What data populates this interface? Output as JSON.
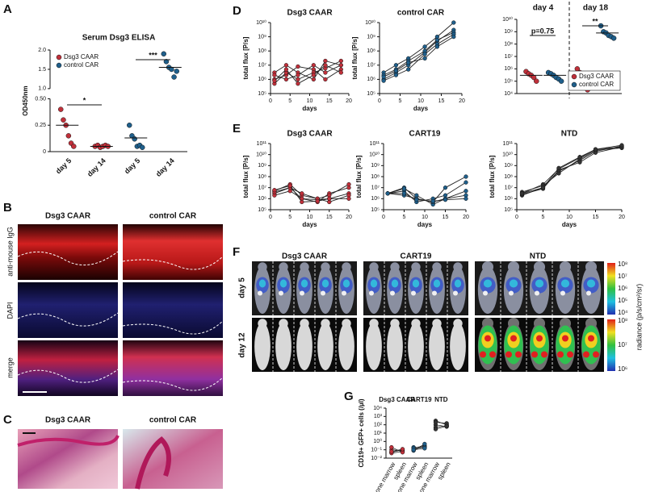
{
  "figure": {
    "panel_labels": [
      "A",
      "B",
      "C",
      "D",
      "E",
      "F",
      "G"
    ]
  },
  "panels": {
    "B": {
      "columns": [
        "Dsg3 CAAR",
        "control CAR"
      ],
      "rows": [
        "anti-mouse IgG",
        "DAPI",
        "merge"
      ]
    },
    "C": {
      "columns": [
        "Dsg3 CAAR",
        "control CAR"
      ]
    },
    "F": {
      "columns": [
        "Dsg3 CAAR",
        "CART19",
        "NTD"
      ],
      "rows": [
        "day 5",
        "day 12"
      ],
      "colorbar_label": "radiance (p/s/cm²/sr)",
      "colorbar_top": [
        "10⁸",
        "10⁷",
        "10⁶",
        "10⁵",
        "10⁴"
      ],
      "colorbar_bottom": [
        "10⁸",
        "10⁷",
        "10⁶"
      ]
    }
  },
  "chart_data": [
    {
      "type": "dot",
      "title": "Serum Dsg3 ELISA",
      "ylabel": "OD450nm",
      "categories": [
        "day 5",
        "day 14",
        "day 5",
        "day 14"
      ],
      "ylim": [
        0,
        2
      ],
      "axis_break": [
        0.5,
        1
      ],
      "yticks": [
        0,
        0.25,
        {
          "value": 0.5,
          "label": "0.50"
        },
        {
          "value": 1,
          "label": "1.0"
        },
        1.5,
        {
          "value": 2,
          "label": "2.0"
        }
      ],
      "series": [
        {
          "name": "Dsg3 CAAR",
          "color": "#c0303a",
          "values": [
            [
              0.4,
              0.3,
              0.25,
              0.15,
              0.08,
              0.05
            ],
            [
              0.05,
              0.06,
              0.04,
              0.05,
              0.06,
              0.05
            ],
            null,
            null
          ],
          "means": [
            0.25,
            0.05,
            null,
            null
          ]
        },
        {
          "name": "control CAR",
          "color": "#1f5f8b",
          "values": [
            null,
            null,
            [
              0.25,
              0.15,
              0.12,
              0.05,
              0.06,
              0.04
            ],
            [
              1.9,
              1.7,
              1.55,
              1.5,
              1.3,
              1.45
            ]
          ],
          "means": [
            null,
            null,
            0.13,
            1.55
          ]
        }
      ],
      "annotations": [
        "*",
        "***"
      ],
      "legend": "upper left"
    },
    {
      "type": "line",
      "title": "Dsg3 CAAR",
      "xlabel": "days",
      "ylabel": "total flux [P/s]",
      "log_y": true,
      "x": [
        1,
        4,
        7,
        11,
        14,
        18
      ],
      "xlim": [
        0,
        20
      ],
      "xticks": [
        0,
        5,
        10,
        15,
        20
      ],
      "ylim": [
        100000,
        10000000000
      ],
      "yticks": [
        {
          "value": 100000,
          "label": "10⁵"
        },
        {
          "value": 1000000,
          "label": "10⁶"
        },
        {
          "value": 10000000,
          "label": "10⁷"
        },
        {
          "value": 100000000,
          "label": "10⁸"
        },
        {
          "value": 1000000000,
          "label": "10⁹"
        },
        {
          "value": 10000000000,
          "label": "10¹⁰"
        }
      ],
      "line_color": "#222",
      "series": [
        {
          "color": "#c0303a",
          "values": [
            3000000,
            10000000,
            3000000,
            1000000,
            20000000,
            10000000
          ]
        },
        {
          "color": "#c0303a",
          "values": [
            1000000,
            2000000,
            8000000,
            5000000,
            1000000,
            5000000
          ]
        },
        {
          "color": "#c0303a",
          "values": [
            500000,
            3000000,
            1000000,
            3000000,
            6000000,
            20000000
          ]
        },
        {
          "color": "#c0303a",
          "values": [
            2000000,
            1000000,
            2000000,
            10000000,
            3000000,
            10000000
          ]
        },
        {
          "color": "#c0303a",
          "values": [
            800000,
            5000000,
            500000,
            2000000,
            10000000,
            3000000
          ]
        }
      ]
    },
    {
      "type": "line",
      "title": "control CAR",
      "xlabel": "days",
      "ylabel": "total flux [P/s]",
      "log_y": true,
      "x": [
        1,
        4,
        7,
        11,
        14,
        18
      ],
      "xlim": [
        0,
        20
      ],
      "xticks": [
        0,
        5,
        10,
        15,
        20
      ],
      "ylim": [
        100000,
        10000000000
      ],
      "yticks": [
        {
          "value": 100000,
          "label": "10⁵"
        },
        {
          "value": 1000000,
          "label": "10⁶"
        },
        {
          "value": 10000000,
          "label": "10⁷"
        },
        {
          "value": 100000000,
          "label": "10⁸"
        },
        {
          "value": 1000000000,
          "label": "10⁹"
        },
        {
          "value": 10000000000,
          "label": "10¹⁰"
        }
      ],
      "line_color": "#222",
      "series": [
        {
          "color": "#1f5f8b",
          "values": [
            3000000,
            10000000,
            30000000,
            200000000,
            1000000000,
            10000000000
          ]
        },
        {
          "color": "#1f5f8b",
          "values": [
            1000000,
            3000000,
            10000000,
            80000000,
            500000000,
            3000000000
          ]
        },
        {
          "color": "#1f5f8b",
          "values": [
            2000000,
            5000000,
            20000000,
            100000000,
            600000000,
            2000000000
          ]
        },
        {
          "color": "#1f5f8b",
          "values": [
            800000,
            2000000,
            5000000,
            60000000,
            300000000,
            1500000000
          ]
        },
        {
          "color": "#1f5f8b",
          "values": [
            1500000,
            4000000,
            15000000,
            30000000,
            200000000,
            1000000000
          ]
        }
      ]
    },
    {
      "type": "dot",
      "log_y": true,
      "categories": [
        "day 4",
        "day 18"
      ],
      "ylim": [
        10000,
        10000000000
      ],
      "yticks": [
        {
          "value": 10000,
          "label": "10⁴"
        },
        {
          "value": 100000,
          "label": "10⁵"
        },
        {
          "value": 1000000,
          "label": "10⁶"
        },
        {
          "value": 10000000,
          "label": "10⁷"
        },
        {
          "value": 100000000,
          "label": "10⁸"
        },
        {
          "value": 1000000000,
          "label": "10⁹"
        },
        {
          "value": 10000000000,
          "label": "10¹⁰"
        }
      ],
      "series": [
        {
          "name": "Dsg3 CAAR",
          "color": "#c0303a",
          "values": [
            [
              600000,
              400000,
              300000,
              200000,
              100000
            ],
            [
              1000000,
              500000,
              300000,
              100000,
              20000,
              30000
            ]
          ],
          "means": [
            300000,
            200000
          ]
        },
        {
          "name": "control CAR",
          "color": "#1f5f8b",
          "values": [
            [
              500000,
              400000,
              300000,
              200000,
              150000,
              100000
            ],
            [
              3000000000,
              1000000000,
              800000000,
              500000000,
              400000000,
              300000000
            ]
          ],
          "means": [
            300000,
            800000000
          ]
        }
      ],
      "annotations": [
        "p=0.75",
        "**"
      ],
      "legend": "lower right"
    },
    {
      "type": "line",
      "title": "Dsg3 CAAR",
      "xlabel": "days",
      "ylabel": "total flux [P/s]",
      "log_y": true,
      "x": [
        1,
        5,
        8,
        12,
        15,
        20
      ],
      "xlim": [
        0,
        20
      ],
      "xticks": [
        0,
        5,
        10,
        15,
        20
      ],
      "ylim": [
        100000,
        100000000000
      ],
      "yticks": [
        {
          "value": 100000,
          "label": "10⁵"
        },
        {
          "value": 1000000,
          "label": "10⁶"
        },
        {
          "value": 10000000,
          "label": "10⁷"
        },
        {
          "value": 100000000,
          "label": "10⁸"
        },
        {
          "value": 1000000000,
          "label": "10⁹"
        },
        {
          "value": 10000000000,
          "label": "10¹⁰"
        },
        {
          "value": 100000000000,
          "label": "10¹¹"
        }
      ],
      "line_color": "#222",
      "series": [
        {
          "color": "#c0303a",
          "values": [
            3000000,
            10000000,
            1000000,
            500000,
            3000000,
            10000000
          ]
        },
        {
          "color": "#c0303a",
          "values": [
            5000000,
            20000000,
            2000000,
            1000000,
            2000000,
            20000000
          ]
        },
        {
          "color": "#c0303a",
          "values": [
            2000000,
            5000000,
            1000000,
            800000,
            1000000,
            3000000
          ]
        },
        {
          "color": "#c0303a",
          "values": [
            4000000,
            10000000,
            3000000,
            1000000,
            500000,
            2000000
          ]
        },
        {
          "color": "#c0303a",
          "values": [
            6000000,
            15000000,
            500000,
            600000,
            1000000,
            1000000
          ]
        }
      ]
    },
    {
      "type": "line",
      "title": "CART19",
      "xlabel": "days",
      "ylabel": "total flux [P/s]",
      "log_y": true,
      "x": [
        1,
        5,
        8,
        12,
        15,
        20
      ],
      "xlim": [
        0,
        20
      ],
      "xticks": [
        0,
        5,
        10,
        15,
        20
      ],
      "ylim": [
        100000,
        100000000000
      ],
      "yticks": [
        {
          "value": 100000,
          "label": "10⁵"
        },
        {
          "value": 1000000,
          "label": "10⁶"
        },
        {
          "value": 10000000,
          "label": "10⁷"
        },
        {
          "value": 100000000,
          "label": "10⁸"
        },
        {
          "value": 1000000000,
          "label": "10⁹"
        },
        {
          "value": 10000000000,
          "label": "10¹⁰"
        },
        {
          "value": 100000000000,
          "label": "10¹¹"
        }
      ],
      "line_color": "#222",
      "series": [
        {
          "color": "#1f5f8b",
          "values": [
            3000000,
            10000000,
            1000000,
            500000,
            10000000,
            100000000
          ]
        },
        {
          "color": "#1f5f8b",
          "values": [
            3000000,
            5000000,
            500000,
            1000000,
            2000000,
            30000000
          ]
        },
        {
          "color": "#1f5f8b",
          "values": [
            3000000,
            8000000,
            2000000,
            300000,
            1000000,
            5000000
          ]
        },
        {
          "color": "#1f5f8b",
          "values": [
            3000000,
            2000000,
            1000000,
            500000,
            1000000,
            2000000
          ]
        },
        {
          "color": "#1f5f8b",
          "values": [
            3000000,
            3000000,
            800000,
            600000,
            800000,
            1000000
          ]
        }
      ]
    },
    {
      "type": "line",
      "title": "NTD",
      "xlabel": "days",
      "ylabel": "total flux [P/s]",
      "log_y": true,
      "x": [
        1,
        5,
        8,
        12,
        15,
        20
      ],
      "xlim": [
        0,
        20
      ],
      "xticks": [
        0,
        5,
        10,
        15,
        20
      ],
      "ylim": [
        100000,
        100000000000
      ],
      "yticks": [
        {
          "value": 100000,
          "label": "10⁵"
        },
        {
          "value": 1000000,
          "label": "10⁶"
        },
        {
          "value": 10000000,
          "label": "10⁷"
        },
        {
          "value": 100000000,
          "label": "10⁸"
        },
        {
          "value": 1000000000,
          "label": "10⁹"
        },
        {
          "value": 10000000000,
          "label": "10¹⁰"
        },
        {
          "value": 100000000000,
          "label": "10¹¹"
        }
      ],
      "line_color": "#222",
      "series": [
        {
          "color": "#333",
          "values": [
            3000000,
            20000000,
            500000000,
            5000000000,
            30000000000,
            50000000000
          ]
        },
        {
          "color": "#333",
          "values": [
            2000000,
            10000000,
            300000000,
            3000000000,
            20000000000,
            60000000000
          ]
        },
        {
          "color": "#333",
          "values": [
            4000000,
            15000000,
            200000000,
            4000000000,
            25000000000,
            40000000000
          ]
        },
        {
          "color": "#333",
          "values": [
            2500000,
            8000000,
            400000000,
            2000000000,
            15000000000,
            50000000000
          ]
        },
        {
          "color": "#333",
          "values": [
            3000000,
            10000000,
            600000000,
            6000000000,
            30000000000,
            70000000000
          ]
        }
      ]
    },
    {
      "type": "paired",
      "ylabel": "CD19+ GFP+ cells (/µl)",
      "log_y": true,
      "categories": [
        "bone marrow",
        "spleen",
        "bone marrow",
        "spleen",
        "bone marrow",
        "spleen"
      ],
      "ylim": [
        0.01,
        10000
      ],
      "yticks": [
        {
          "value": 0.01,
          "label": "10⁻²"
        },
        {
          "value": 0.1,
          "label": "10⁻¹"
        },
        {
          "value": 1,
          "label": "10⁰"
        },
        {
          "value": 10,
          "label": "10¹"
        },
        {
          "value": 100,
          "label": "10²"
        },
        {
          "value": 1000,
          "label": "10³"
        },
        {
          "value": 10000,
          "label": "10⁴"
        }
      ],
      "series": [
        {
          "name": "Dsg3 CAAR",
          "color": "#c0303a",
          "values": [
            [
              0.05,
              0.1
            ],
            [
              0.1,
              0.08
            ],
            [
              0.04,
              0.06
            ],
            [
              0.2,
              0.05
            ],
            [
              0.06,
              0.12
            ]
          ]
        },
        {
          "name": "CART19",
          "color": "#1f5f8b",
          "values": [
            [
              0.1,
              0.3
            ],
            [
              0.2,
              0.25
            ],
            [
              0.08,
              0.5
            ],
            [
              0.15,
              0.2
            ],
            [
              0.1,
              0.15
            ]
          ]
        },
        {
          "name": "NTD",
          "color": "#333",
          "values": [
            [
              300,
              100
            ],
            [
              100,
              60
            ],
            [
              50,
              80
            ],
            [
              200,
              150
            ],
            [
              30,
              70
            ]
          ]
        }
      ]
    }
  ]
}
